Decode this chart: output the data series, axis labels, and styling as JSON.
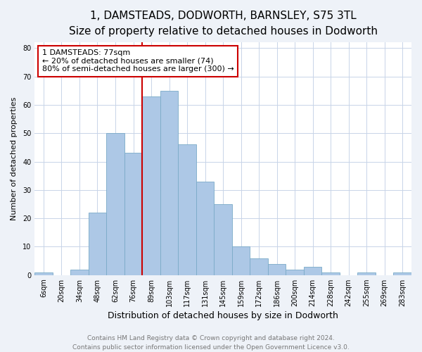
{
  "title": "1, DAMSTEADS, DODWORTH, BARNSLEY, S75 3TL",
  "subtitle": "Size of property relative to detached houses in Dodworth",
  "xlabel": "Distribution of detached houses by size in Dodworth",
  "ylabel": "Number of detached properties",
  "categories": [
    "6sqm",
    "20sqm",
    "34sqm",
    "48sqm",
    "62sqm",
    "76sqm",
    "89sqm",
    "103sqm",
    "117sqm",
    "131sqm",
    "145sqm",
    "159sqm",
    "172sqm",
    "186sqm",
    "200sqm",
    "214sqm",
    "228sqm",
    "242sqm",
    "255sqm",
    "269sqm",
    "283sqm"
  ],
  "values": [
    1,
    0,
    2,
    22,
    50,
    43,
    63,
    65,
    46,
    33,
    25,
    10,
    6,
    4,
    2,
    3,
    1,
    0,
    1,
    0,
    1
  ],
  "bar_color": "#adc8e6",
  "bar_edge_color": "#7aaac8",
  "vline_x": 5.5,
  "vline_color": "#cc0000",
  "annotation_line1": "1 DAMSTEADS: 77sqm",
  "annotation_line2": "← 20% of detached houses are smaller (74)",
  "annotation_line3": "80% of semi-detached houses are larger (300) →",
  "annotation_box_facecolor": "#ffffff",
  "annotation_box_edgecolor": "#cc0000",
  "ylim": [
    0,
    82
  ],
  "yticks": [
    0,
    10,
    20,
    30,
    40,
    50,
    60,
    70,
    80
  ],
  "footer_line1": "Contains HM Land Registry data © Crown copyright and database right 2024.",
  "footer_line2": "Contains public sector information licensed under the Open Government Licence v3.0.",
  "bg_color": "#eef2f8",
  "plot_bg_color": "#ffffff",
  "title_fontsize": 11,
  "subtitle_fontsize": 9.5,
  "xlabel_fontsize": 9,
  "ylabel_fontsize": 8,
  "tick_fontsize": 7,
  "annotation_fontsize": 8,
  "footer_fontsize": 6.5
}
